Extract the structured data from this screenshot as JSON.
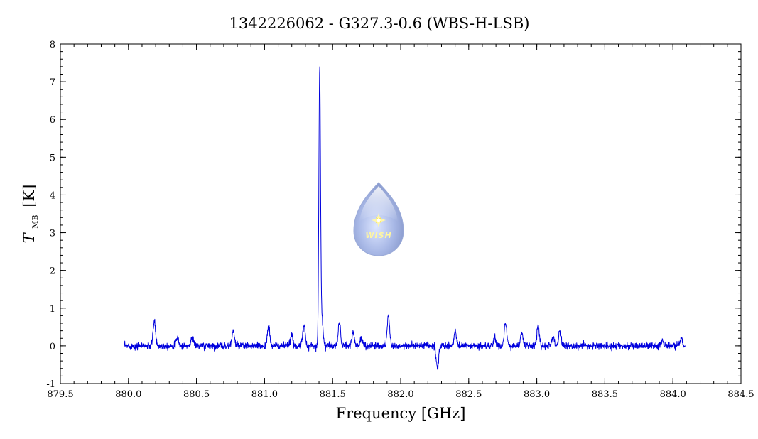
{
  "chart_data": {
    "type": "line",
    "title": "1342226062 - G327.3-0.6 (WBS-H-LSB)",
    "xlabel": "Frequency [GHz]",
    "ylabel": "T",
    "ylabel_subscript": "MB",
    "ylabel_unit": "[K]",
    "xlim": [
      879.5,
      884.5
    ],
    "ylim": [
      -1,
      8
    ],
    "xticks": [
      "879.5",
      "880.0",
      "880.5",
      "881.0",
      "881.5",
      "882.0",
      "882.5",
      "883.0",
      "883.5",
      "884.0",
      "884.5"
    ],
    "yticks": [
      "-1",
      "0",
      "1",
      "2",
      "3",
      "4",
      "5",
      "6",
      "7",
      "8"
    ],
    "grid": false,
    "line_color": "#0000dd",
    "spectrum_range": [
      879.97,
      884.09
    ],
    "baseline": 0.0,
    "noise_rms": 0.045,
    "features": [
      {
        "x": 880.19,
        "y": 0.65
      },
      {
        "x": 880.36,
        "y": 0.2
      },
      {
        "x": 880.47,
        "y": 0.25
      },
      {
        "x": 880.77,
        "y": 0.4
      },
      {
        "x": 881.03,
        "y": 0.5
      },
      {
        "x": 881.2,
        "y": 0.3
      },
      {
        "x": 881.29,
        "y": 0.55
      },
      {
        "x": 881.405,
        "y": 7.2
      },
      {
        "x": 881.42,
        "y": 0.8
      },
      {
        "x": 881.55,
        "y": 0.6
      },
      {
        "x": 881.65,
        "y": 0.35
      },
      {
        "x": 881.71,
        "y": 0.2
      },
      {
        "x": 881.91,
        "y": 0.8
      },
      {
        "x": 882.27,
        "y": -0.6
      },
      {
        "x": 882.4,
        "y": 0.4
      },
      {
        "x": 882.69,
        "y": 0.2
      },
      {
        "x": 882.77,
        "y": 0.6
      },
      {
        "x": 882.89,
        "y": 0.35
      },
      {
        "x": 883.01,
        "y": 0.55
      },
      {
        "x": 883.12,
        "y": 0.25
      },
      {
        "x": 883.17,
        "y": 0.4
      },
      {
        "x": 883.92,
        "y": 0.15
      },
      {
        "x": 884.06,
        "y": 0.2
      }
    ]
  },
  "watermark": {
    "text": "WISH",
    "drop_color": "#aabbee",
    "star_color": "#ffee66"
  }
}
